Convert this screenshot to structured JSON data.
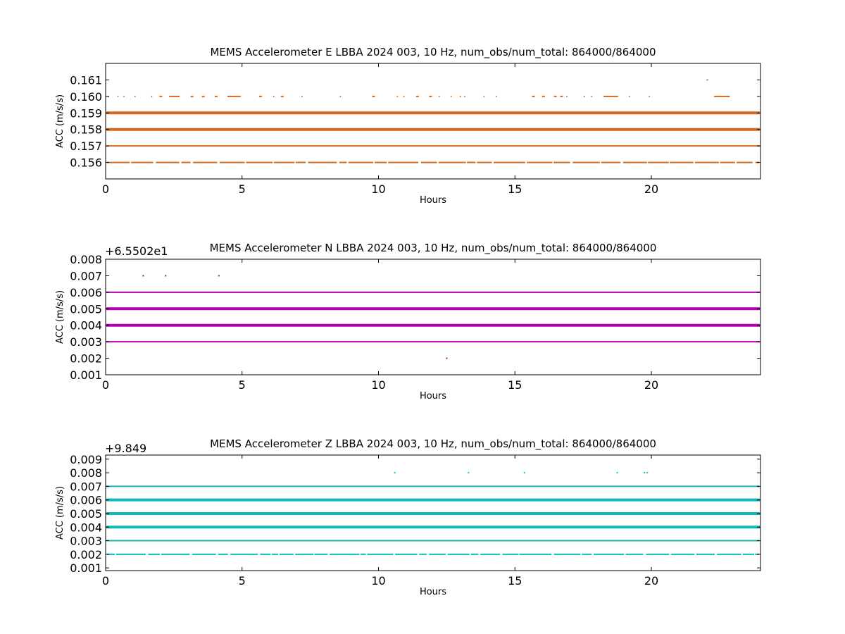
{
  "chart_data": [
    {
      "type": "scatter",
      "title": "MEMS Accelerometer E LBBA 2024 003, 10 Hz, num_obs/num_total: 864000/864000",
      "xlabel": "Hours",
      "ylabel": "ACC (m/s/s)",
      "offset_text": "",
      "xlim": [
        0,
        24
      ],
      "ylim": [
        0.155,
        0.162
      ],
      "xticks": [
        0,
        5,
        10,
        15,
        20
      ],
      "xtick_labels": [
        "0",
        "5",
        "10",
        "15",
        "20"
      ],
      "yticks": [
        0.156,
        0.157,
        0.158,
        0.159,
        0.16,
        0.161
      ],
      "ytick_labels": [
        "0.156",
        "0.157",
        "0.158",
        "0.159",
        "0.160",
        "0.161"
      ],
      "grid": false,
      "color": "#d2691e",
      "levels": [
        {
          "y": 0.156,
          "density": "sparse"
        },
        {
          "y": 0.157,
          "density": "dense"
        },
        {
          "y": 0.158,
          "density": "solid"
        },
        {
          "y": 0.159,
          "density": "solid"
        },
        {
          "y": 0.16,
          "density": "rare"
        }
      ],
      "outliers": [
        {
          "x": 22.05,
          "y": 0.161
        }
      ]
    },
    {
      "type": "scatter",
      "title": "MEMS Accelerometer N LBBA 2024 003, 10 Hz, num_obs/num_total: 864000/864000",
      "xlabel": "Hours",
      "ylabel": "ACC (m/s/s)",
      "offset_text": "+6.5502e1",
      "xlim": [
        0,
        24
      ],
      "ylim": [
        0.001,
        0.008
      ],
      "xticks": [
        0,
        5,
        10,
        15,
        20
      ],
      "xtick_labels": [
        "0",
        "5",
        "10",
        "15",
        "20"
      ],
      "yticks": [
        0.001,
        0.002,
        0.003,
        0.004,
        0.005,
        0.006,
        0.007,
        0.008
      ],
      "ytick_labels": [
        "0.001",
        "0.002",
        "0.003",
        "0.004",
        "0.005",
        "0.006",
        "0.007",
        "0.008"
      ],
      "grid": false,
      "color": "#b000b0",
      "levels": [
        {
          "y": 0.003,
          "density": "dense"
        },
        {
          "y": 0.004,
          "density": "solid"
        },
        {
          "y": 0.005,
          "density": "solid"
        },
        {
          "y": 0.006,
          "density": "dense"
        }
      ],
      "outliers": [
        {
          "x": 1.38,
          "y": 0.007
        },
        {
          "x": 2.2,
          "y": 0.007
        },
        {
          "x": 4.15,
          "y": 0.007
        },
        {
          "x": 12.5,
          "y": 0.002
        }
      ]
    },
    {
      "type": "scatter",
      "title": "MEMS Accelerometer Z LBBA 2024 003, 10 Hz, num_obs/num_total: 864000/864000",
      "xlabel": "Hours",
      "ylabel": "ACC (m/s/s)",
      "offset_text": "+9.849",
      "xlim": [
        0,
        24
      ],
      "ylim": [
        0.0008,
        0.0093
      ],
      "xticks": [
        0,
        5,
        10,
        15,
        20
      ],
      "xtick_labels": [
        "0",
        "5",
        "10",
        "15",
        "20"
      ],
      "yticks": [
        0.001,
        0.002,
        0.003,
        0.004,
        0.005,
        0.006,
        0.007,
        0.008,
        0.009
      ],
      "ytick_labels": [
        "0.001",
        "0.002",
        "0.003",
        "0.004",
        "0.005",
        "0.006",
        "0.007",
        "0.008",
        "0.009"
      ],
      "grid": false,
      "color": "#10b8b8",
      "levels": [
        {
          "y": 0.002,
          "density": "sparse"
        },
        {
          "y": 0.003,
          "density": "dense"
        },
        {
          "y": 0.004,
          "density": "solid"
        },
        {
          "y": 0.005,
          "density": "solid"
        },
        {
          "y": 0.006,
          "density": "solid"
        },
        {
          "y": 0.007,
          "density": "dense"
        }
      ],
      "outliers": [
        {
          "x": 10.6,
          "y": 0.008
        },
        {
          "x": 13.3,
          "y": 0.008
        },
        {
          "x": 15.35,
          "y": 0.008
        },
        {
          "x": 18.75,
          "y": 0.008
        },
        {
          "x": 19.75,
          "y": 0.008
        },
        {
          "x": 19.85,
          "y": 0.008
        }
      ]
    }
  ]
}
